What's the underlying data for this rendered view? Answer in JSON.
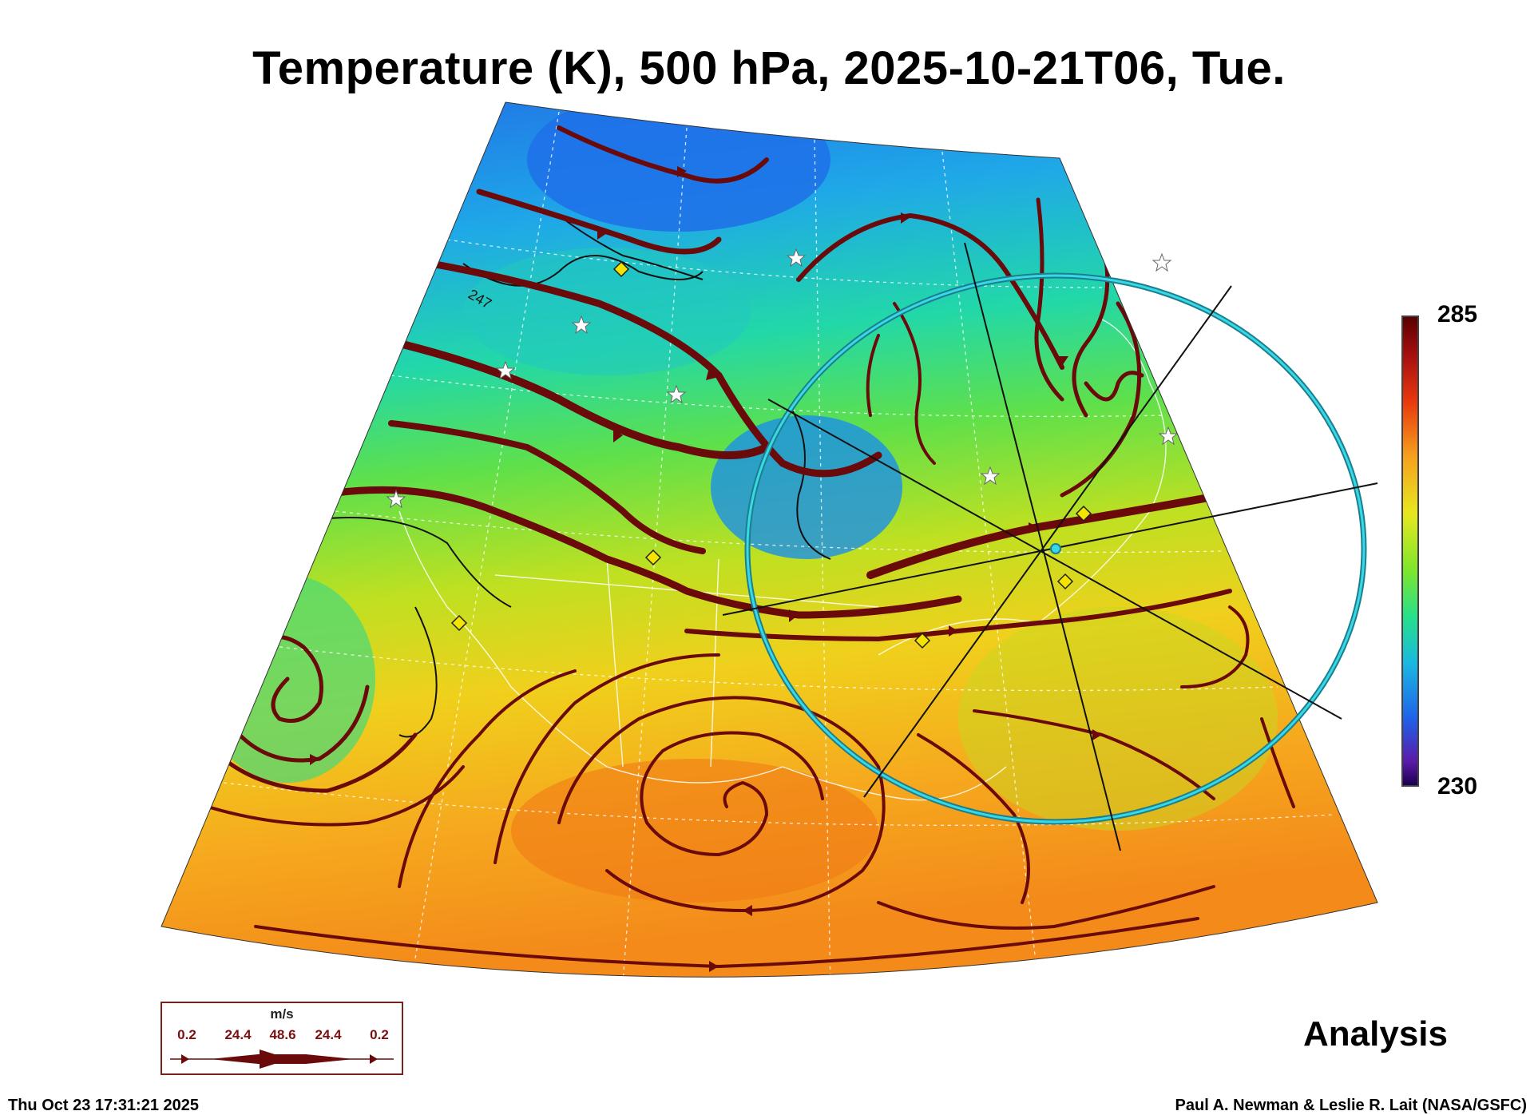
{
  "title": "Temperature (K), 500 hPa, 2025-10-21T06, Tue.",
  "colorbar": {
    "max": "285",
    "min": "230",
    "colors": [
      "#5a0000",
      "#e8380e",
      "#f6a21d",
      "#e6e81f",
      "#7fe62c",
      "#27e08a",
      "#19b8e0",
      "#2060e8",
      "#5a1aa8",
      "#1c0050"
    ]
  },
  "contour_label": "247",
  "legend": {
    "unit": "m/s",
    "values": [
      "0.2",
      "24.4",
      "48.6",
      "24.4",
      "0.2"
    ]
  },
  "status": "Analysis",
  "timestamp": "Thu Oct 23 17:31:21 2025",
  "credit": "Paul A. Newman & Leslie R. Lait (NASA/GSFC)",
  "colors": {
    "streamline": "#6a0a0a",
    "circle": "#24c7d8",
    "marker": "#f5e400"
  }
}
